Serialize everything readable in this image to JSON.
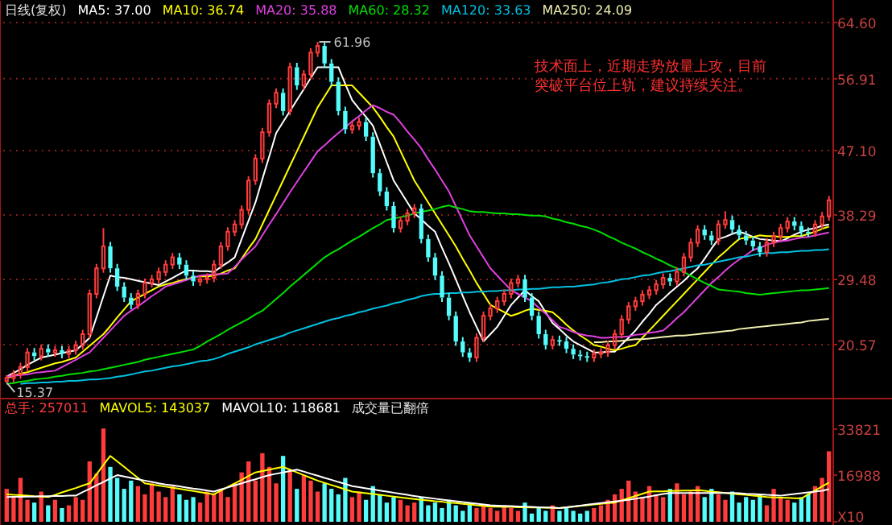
{
  "chart_data": [
    {
      "type": "candlestick",
      "title": "日线(复权)",
      "legend": "top left",
      "grid": "y",
      "categories": [
        null,
        null,
        null,
        null,
        null,
        null,
        null,
        null,
        null,
        null,
        null,
        null,
        null,
        null,
        null,
        null,
        null,
        null,
        null,
        null,
        null,
        null,
        null,
        null,
        null,
        null,
        null,
        null,
        null,
        null,
        null,
        null,
        null,
        null,
        null,
        null,
        null,
        null,
        null,
        null,
        null,
        null,
        null,
        null,
        null,
        null,
        null,
        null,
        null,
        null,
        null,
        null,
        null,
        null,
        null,
        null,
        null,
        null,
        null,
        null,
        null,
        null,
        null,
        null,
        null,
        null,
        null,
        null,
        null,
        null,
        null,
        null,
        null,
        null,
        null,
        null,
        null,
        null,
        null,
        null,
        null,
        null,
        null,
        null,
        null,
        null,
        null,
        null,
        null,
        null,
        null,
        null,
        null,
        null,
        null,
        null,
        null,
        null,
        null,
        null,
        null,
        null,
        null,
        null,
        null,
        null,
        null,
        null,
        null,
        null,
        null,
        null,
        null,
        null,
        null,
        null,
        null,
        null,
        null,
        null
      ],
      "ohlc": [
        [
          15.6,
          16.4,
          15.37,
          16.0
        ],
        [
          16.0,
          17.1,
          15.4,
          16.5
        ],
        [
          16.5,
          18.1,
          15.9,
          17.5
        ],
        [
          17.5,
          20.1,
          16.9,
          19.5
        ],
        [
          19.5,
          20.1,
          18.4,
          19.0
        ],
        [
          19.0,
          20.6,
          18.4,
          20.0
        ],
        [
          20.0,
          20.6,
          18.9,
          19.5
        ],
        [
          19.5,
          20.4,
          18.9,
          19.8
        ],
        [
          19.8,
          20.4,
          18.7,
          19.3
        ],
        [
          19.3,
          20.4,
          18.7,
          19.8
        ],
        [
          19.8,
          21.1,
          19.2,
          20.5
        ],
        [
          20.5,
          22.6,
          19.9,
          22.0
        ],
        [
          22.0,
          28.1,
          21.4,
          27.5
        ],
        [
          27.5,
          31.6,
          26.9,
          31.0
        ],
        [
          31.0,
          36.5,
          30.4,
          34.0
        ],
        [
          34.0,
          34.6,
          30.4,
          31.0
        ],
        [
          31.0,
          31.6,
          27.9,
          28.5
        ],
        [
          28.5,
          29.1,
          26.4,
          27.0
        ],
        [
          27.0,
          27.6,
          25.4,
          26.0
        ],
        [
          26.0,
          28.1,
          25.4,
          27.5
        ],
        [
          27.5,
          29.6,
          26.9,
          29.0
        ],
        [
          29.0,
          30.1,
          28.4,
          29.5
        ],
        [
          29.5,
          31.1,
          28.9,
          30.5
        ],
        [
          30.5,
          32.1,
          29.9,
          31.5
        ],
        [
          31.5,
          33.1,
          30.9,
          32.5
        ],
        [
          32.5,
          33.1,
          30.9,
          31.5
        ],
        [
          31.5,
          32.1,
          29.4,
          30.0
        ],
        [
          30.0,
          30.6,
          28.6,
          29.2
        ],
        [
          29.2,
          30.1,
          28.6,
          29.5
        ],
        [
          29.5,
          30.3,
          28.9,
          29.7
        ],
        [
          29.7,
          32.1,
          29.1,
          31.5
        ],
        [
          31.5,
          34.6,
          30.9,
          34.0
        ],
        [
          34.0,
          36.6,
          33.4,
          36.0
        ],
        [
          36.0,
          37.6,
          35.4,
          37.0
        ],
        [
          37.0,
          39.6,
          36.4,
          39.0
        ],
        [
          39.0,
          43.6,
          38.4,
          43.0
        ],
        [
          43.0,
          46.6,
          42.4,
          46.0
        ],
        [
          46.0,
          50.2,
          45.4,
          49.6
        ],
        [
          49.6,
          54.1,
          49.0,
          53.5
        ],
        [
          53.5,
          55.6,
          52.9,
          55.0
        ],
        [
          55.0,
          55.6,
          51.9,
          52.5
        ],
        [
          52.5,
          59.1,
          51.9,
          58.5
        ],
        [
          58.5,
          59.1,
          55.4,
          56.0
        ],
        [
          56.0,
          58.1,
          55.4,
          57.5
        ],
        [
          57.5,
          61.1,
          56.9,
          60.5
        ],
        [
          60.5,
          61.96,
          59.9,
          61.4
        ],
        [
          61.4,
          61.9,
          58.4,
          59.0
        ],
        [
          59.0,
          59.6,
          55.9,
          56.5
        ],
        [
          56.5,
          57.1,
          51.9,
          52.5
        ],
        [
          52.5,
          53.1,
          49.4,
          50.0
        ],
        [
          50.0,
          51.1,
          49.4,
          50.5
        ],
        [
          50.5,
          51.6,
          49.9,
          51.0
        ],
        [
          51.0,
          51.6,
          48.4,
          49.0
        ],
        [
          49.0,
          49.6,
          43.4,
          44.0
        ],
        [
          44.0,
          44.6,
          40.9,
          41.5
        ],
        [
          41.5,
          42.1,
          38.9,
          39.5
        ],
        [
          39.5,
          40.1,
          35.9,
          36.5
        ],
        [
          36.5,
          38.1,
          35.9,
          37.5
        ],
        [
          37.5,
          39.1,
          36.9,
          38.5
        ],
        [
          38.5,
          39.8,
          37.9,
          39.2
        ],
        [
          39.2,
          39.8,
          34.4,
          35.0
        ],
        [
          35.0,
          35.6,
          31.9,
          32.5
        ],
        [
          32.5,
          33.1,
          29.4,
          30.0
        ],
        [
          30.0,
          30.6,
          26.4,
          27.0
        ],
        [
          27.0,
          27.6,
          23.9,
          24.5
        ],
        [
          24.5,
          25.1,
          20.4,
          21.0
        ],
        [
          21.0,
          21.6,
          18.9,
          19.5
        ],
        [
          19.5,
          20.1,
          18.2,
          18.8
        ],
        [
          18.8,
          22.1,
          18.2,
          21.5
        ],
        [
          21.5,
          25.1,
          20.9,
          24.5
        ],
        [
          24.5,
          26.1,
          23.9,
          25.5
        ],
        [
          25.5,
          27.1,
          24.9,
          26.5
        ],
        [
          26.5,
          28.1,
          25.9,
          27.5
        ],
        [
          27.5,
          29.6,
          26.9,
          29.0
        ],
        [
          29.0,
          30.1,
          28.4,
          29.5
        ],
        [
          29.5,
          30.1,
          26.4,
          27.0
        ],
        [
          27.0,
          27.6,
          23.9,
          24.5
        ],
        [
          24.5,
          25.1,
          21.4,
          22.0
        ],
        [
          22.0,
          22.6,
          19.9,
          20.5
        ],
        [
          20.5,
          21.8,
          19.9,
          21.2
        ],
        [
          21.2,
          21.8,
          20.4,
          21.0
        ],
        [
          21.0,
          21.6,
          19.4,
          20.0
        ],
        [
          20.0,
          20.6,
          18.6,
          19.2
        ],
        [
          19.2,
          19.8,
          18.4,
          19.0
        ],
        [
          19.0,
          19.6,
          18.2,
          18.8
        ],
        [
          18.8,
          19.9,
          18.2,
          19.3
        ],
        [
          19.3,
          20.1,
          18.7,
          19.5
        ],
        [
          19.5,
          21.1,
          18.9,
          20.5
        ],
        [
          20.5,
          22.6,
          19.9,
          22.0
        ],
        [
          22.0,
          24.6,
          21.4,
          24.0
        ],
        [
          24.0,
          26.4,
          23.4,
          25.8
        ],
        [
          25.8,
          27.1,
          25.2,
          26.5
        ],
        [
          26.5,
          28.0,
          25.9,
          27.4
        ],
        [
          27.4,
          28.6,
          26.8,
          28.0
        ],
        [
          28.0,
          29.4,
          27.4,
          28.8
        ],
        [
          28.8,
          30.3,
          28.2,
          29.7
        ],
        [
          29.7,
          30.3,
          28.6,
          29.2
        ],
        [
          29.2,
          31.1,
          28.6,
          30.5
        ],
        [
          30.5,
          33.1,
          29.9,
          32.5
        ],
        [
          32.5,
          35.1,
          31.9,
          34.5
        ],
        [
          34.5,
          36.9,
          33.9,
          36.3
        ],
        [
          36.3,
          36.9,
          34.9,
          35.5
        ],
        [
          35.5,
          36.1,
          34.2,
          34.8
        ],
        [
          34.8,
          37.6,
          34.2,
          37.0
        ],
        [
          37.0,
          38.8,
          36.4,
          37.6
        ],
        [
          37.6,
          38.2,
          35.7,
          36.3
        ],
        [
          36.3,
          36.9,
          34.9,
          35.5
        ],
        [
          35.5,
          36.1,
          34.2,
          34.8
        ],
        [
          34.8,
          35.4,
          33.4,
          34.0
        ],
        [
          34.0,
          34.6,
          32.6,
          33.2
        ],
        [
          33.2,
          35.1,
          32.6,
          34.5
        ],
        [
          34.5,
          36.0,
          33.9,
          35.4
        ],
        [
          35.4,
          37.1,
          34.8,
          36.5
        ],
        [
          36.5,
          38.0,
          35.9,
          37.4
        ],
        [
          37.4,
          38.0,
          36.2,
          36.8
        ],
        [
          36.8,
          37.4,
          35.4,
          36.0
        ],
        [
          36.0,
          36.6,
          35.3,
          35.9
        ],
        [
          35.9,
          37.6,
          35.3,
          37.0
        ],
        [
          37.0,
          38.7,
          36.4,
          38.1
        ],
        [
          38.1,
          40.9,
          37.5,
          40.3
        ]
      ],
      "ylim": [
        13.3,
        64.6
      ],
      "yticks": [
        20.57,
        29.48,
        38.29,
        {
          "value": 47.1,
          "label": "47.10"
        },
        56.91,
        {
          "value": 64.6,
          "label": "64.60"
        }
      ],
      "annotations": [
        "61.96",
        "15.37",
        "技术面上，近期走势放量上攻，目前突破平台位上轨，建议持续关注。"
      ],
      "series": [
        {
          "name": "MA5: 37.00",
          "type": "line",
          "color": "#ffffff",
          "values": [
            16.2,
            16.7,
            17.2,
            17.8,
            18.3,
            18.8,
            19.0,
            19.2,
            19.4,
            19.6,
            19.8,
            20.6,
            21.5,
            24.3,
            27.2,
            30.0,
            29.8,
            29.7,
            29.5,
            29.3,
            29.1,
            28.9,
            28.7,
            29.2,
            29.7,
            30.2,
            30.7,
            30.7,
            30.6,
            30.6,
            30.5,
            31.2,
            31.8,
            32.5,
            35.0,
            37.5,
            40,
            43.2,
            46.3,
            49.5,
            51.0,
            52.5,
            54,
            55.5,
            57.0,
            58.5,
            58.5,
            58.5,
            58.5,
            56.2,
            54,
            52.8,
            51.7,
            50.5,
            48.0,
            45.5,
            43,
            41.5,
            40.0,
            38.5,
            37.7,
            36.8,
            36,
            33.8,
            31.7,
            29.5,
            27.2,
            25,
            23.0,
            21,
            22.0,
            23,
            24.5,
            26,
            27.0,
            28,
            27.2,
            26.5,
            25.0,
            23.5,
            22.7,
            21.8,
            21,
            20.5,
            20.0,
            19.5,
            19.5,
            19.6,
            19.6,
            20.6,
            21.5,
            22.5,
            23.7,
            24.8,
            26,
            26.8,
            27.7,
            28.5,
            29.3,
            30.2,
            31,
            32.3,
            33.7,
            35,
            35.3,
            35.7,
            36,
            35.7,
            35.3,
            35,
            34.9,
            34.8,
            34.7,
            35.1,
            35.6,
            36,
            36.3,
            36.5,
            36.8,
            37.0
          ]
        },
        {
          "name": "MA10: 36.74",
          "type": "line",
          "color": "#ffff00",
          "values": [
            16.0,
            16.3,
            16.6,
            16.8,
            17.1,
            17.4,
            17.7,
            18.0,
            18.2,
            18.5,
            18.8,
            19.6,
            20.4,
            21.2,
            22.0,
            23.1,
            24.3,
            25.4,
            26.5,
            27.0,
            27.5,
            28.0,
            28.5,
            28.8,
            29.0,
            29.3,
            29.5,
            29.8,
            29.9,
            29.9,
            30.0,
            30.3,
            30.7,
            31.0,
            32.3,
            33.7,
            35.0,
            37.0,
            39.0,
            41.0,
            43.0,
            45.0,
            47.0,
            49.0,
            51.0,
            53.0,
            54.5,
            56.0,
            56.0,
            56.0,
            56.0,
            55.0,
            54.0,
            53.0,
            51.7,
            50.3,
            49.0,
            47.0,
            45.0,
            43.0,
            41.5,
            40.0,
            38.5,
            37.0,
            35.5,
            34.0,
            32.3,
            30.7,
            29.0,
            27.5,
            26.0,
            25.5,
            25.0,
            24.5,
            24.8,
            25.2,
            25.5,
            25.3,
            25.2,
            25.0,
            24.2,
            23.3,
            22.5,
            21.8,
            21.2,
            20.5,
            20.3,
            20.0,
            19.8,
            20.0,
            20.3,
            20.5,
            21.5,
            22.5,
            23.5,
            24.5,
            25.5,
            26.5,
            27.5,
            28.5,
            29.5,
            30.5,
            31.5,
            32.5,
            33.3,
            34.2,
            35.0,
            35.2,
            35.3,
            35.5,
            35.4,
            35.4,
            35.3,
            35.3,
            35.4,
            35.4,
            35.7,
            36.0,
            36.4,
            36.7
          ]
        },
        {
          "name": "MA20: 35.88",
          "type": "line",
          "color": "#e040e0",
          "values": [
            16.2,
            16.3,
            16.4,
            16.5,
            16.7,
            16.8,
            16.9,
            17.0,
            17.5,
            18.0,
            18.5,
            19.0,
            19.5,
            20.5,
            21.5,
            22.5,
            23.5,
            24.5,
            25.2,
            25.8,
            26.5,
            27.2,
            27.8,
            28.5,
            28.8,
            29.1,
            29.4,
            29.7,
            30.0,
            30.1,
            30.2,
            30.2,
            30.3,
            31.2,
            32.2,
            33.1,
            34.0,
            35.5,
            37.0,
            38.4,
            39.9,
            41.4,
            42.8,
            44.2,
            45.6,
            47.0,
            47.8,
            48.7,
            49.5,
            50.3,
            51.1,
            51.8,
            52.6,
            53.3,
            52.9,
            52.4,
            52.0,
            50.9,
            49.7,
            48.6,
            47.4,
            45.9,
            44.5,
            43.0,
            41.5,
            39.5,
            37.5,
            35.5,
            34.0,
            32.5,
            31.0,
            30.0,
            29.0,
            28.0,
            27.5,
            27.0,
            26.5,
            25.6,
            24.8,
            23.9,
            23.0,
            22.7,
            22.3,
            22.0,
            21.8,
            21.7,
            21.5,
            21.5,
            21.6,
            21.6,
            21.7,
            21.9,
            22.0,
            22.2,
            22.3,
            22.5,
            23.3,
            24.2,
            25.0,
            26.0,
            27.0,
            28.0,
            29.0,
            29.8,
            30.7,
            31.5,
            32.2,
            32.8,
            33.5,
            33.8,
            34.2,
            34.5,
            34.7,
            34.8,
            35.0,
            35.2,
            35.3,
            35.5,
            35.7,
            35.9
          ]
        },
        {
          "name": "MA60: 28.32",
          "type": "line",
          "color": "#00e000",
          "values": [
            15.2,
            15.3,
            15.5,
            15.6,
            15.8,
            15.9,
            16.0,
            16.2,
            16.3,
            16.5,
            16.6,
            16.7,
            16.9,
            17.0,
            17.2,
            17.4,
            17.6,
            17.8,
            18.0,
            18.2,
            18.5,
            18.7,
            18.9,
            19.1,
            19.3,
            19.5,
            19.7,
            19.9,
            20.4,
            21.0,
            21.5,
            22.0,
            22.6,
            23.1,
            23.6,
            24.1,
            24.7,
            25.2,
            26.0,
            26.8,
            27.6,
            28.5,
            29.3,
            30.1,
            30.9,
            31.7,
            32.5,
            33.1,
            33.6,
            34.2,
            34.8,
            35.3,
            35.9,
            36.5,
            37.0,
            37.6,
            37.8,
            38.0,
            38.2,
            38.5,
            38.7,
            38.9,
            39.1,
            39.4,
            39.6,
            39.3,
            39.1,
            38.8,
            38.7,
            38.7,
            38.6,
            38.5,
            38.5,
            38.4,
            38.4,
            38.3,
            38.2,
            38.2,
            38.1,
            37.8,
            37.6,
            37.3,
            37.1,
            36.8,
            36.6,
            36.3,
            35.9,
            35.4,
            35.0,
            34.5,
            34.1,
            33.7,
            33.2,
            32.8,
            32.3,
            31.9,
            31.4,
            31.0,
            30.5,
            30.0,
            29.5,
            29.0,
            28.6,
            28.1,
            28.0,
            27.9,
            27.8,
            27.6,
            27.5,
            27.4,
            27.5,
            27.6,
            27.7,
            27.8,
            27.9,
            28.0,
            28.0,
            28.1,
            28.2,
            28.3
          ]
        },
        {
          "name": "MA120: 33.63",
          "type": "line",
          "color": "#00c0e0",
          "values": [
            null,
            null,
            15.2,
            15.3,
            15.3,
            15.4,
            15.4,
            15.5,
            15.5,
            15.6,
            15.6,
            15.7,
            15.8,
            15.8,
            15.9,
            16.0,
            16.2,
            16.3,
            16.5,
            16.7,
            16.9,
            17.0,
            17.2,
            17.4,
            17.6,
            17.7,
            17.9,
            18.1,
            18.3,
            18.4,
            18.6,
            18.9,
            19.3,
            19.6,
            19.9,
            20.2,
            20.6,
            20.9,
            21.2,
            21.5,
            21.8,
            22.2,
            22.5,
            22.8,
            23.1,
            23.4,
            23.7,
            24.0,
            24.2,
            24.5,
            24.7,
            25.0,
            25.2,
            25.5,
            25.7,
            25.9,
            26.2,
            26.4,
            26.7,
            26.9,
            27.2,
            27.4,
            27.5,
            27.5,
            27.6,
            27.6,
            27.7,
            27.7,
            27.8,
            27.8,
            27.9,
            27.9,
            28.0,
            28.0,
            28.1,
            28.1,
            28.2,
            28.2,
            28.3,
            28.4,
            28.4,
            28.5,
            28.5,
            28.6,
            28.7,
            28.8,
            29.0,
            29.1,
            29.3,
            29.5,
            29.6,
            29.8,
            30.0,
            30.1,
            30.3,
            30.5,
            30.6,
            30.8,
            31.0,
            31.2,
            31.4,
            31.5,
            31.7,
            31.9,
            32.1,
            32.3,
            32.5,
            32.6,
            32.8,
            33.0,
            33.1,
            33.1,
            33.2,
            33.2,
            33.3,
            33.4,
            33.4,
            33.5,
            33.5,
            33.6
          ]
        },
        {
          "name": "MA250: 24.09",
          "type": "line",
          "color": "#f0f0b0",
          "values": [
            null,
            null,
            null,
            null,
            null,
            null,
            null,
            null,
            null,
            null,
            null,
            null,
            null,
            null,
            null,
            null,
            null,
            null,
            null,
            null,
            null,
            null,
            null,
            null,
            null,
            null,
            null,
            null,
            null,
            null,
            null,
            null,
            null,
            null,
            null,
            null,
            null,
            null,
            null,
            null,
            null,
            null,
            null,
            null,
            null,
            null,
            null,
            null,
            null,
            null,
            null,
            null,
            null,
            null,
            null,
            null,
            null,
            null,
            null,
            null,
            null,
            null,
            null,
            null,
            null,
            null,
            null,
            null,
            null,
            null,
            null,
            null,
            null,
            null,
            null,
            null,
            null,
            null,
            null,
            null,
            null,
            null,
            null,
            null,
            null,
            20.9,
            20.9,
            21.0,
            21.0,
            21.1,
            21.2,
            21.3,
            21.3,
            21.4,
            21.5,
            21.6,
            21.7,
            21.8,
            21.8,
            21.9,
            22.0,
            22.1,
            22.2,
            22.3,
            22.4,
            22.5,
            22.7,
            22.8,
            22.9,
            23.0,
            23.1,
            23.2,
            23.3,
            23.4,
            23.5,
            23.6,
            23.8,
            23.9,
            24.0,
            24.1
          ]
        }
      ]
    },
    {
      "type": "bar",
      "legend": "top left",
      "categories": [
        null,
        null,
        null,
        null,
        null,
        null,
        null,
        null,
        null,
        null,
        null,
        null,
        null,
        null,
        null,
        null,
        null,
        null,
        null,
        null,
        null,
        null,
        null,
        null,
        null,
        null,
        null,
        null,
        null,
        null,
        null,
        null,
        null,
        null,
        null,
        null,
        null,
        null,
        null,
        null,
        null,
        null,
        null,
        null,
        null,
        null,
        null,
        null,
        null,
        null,
        null,
        null,
        null,
        null,
        null,
        null,
        null,
        null,
        null,
        null,
        null,
        null,
        null,
        null,
        null,
        null,
        null,
        null,
        null,
        null,
        null,
        null,
        null,
        null,
        null,
        null,
        null,
        null,
        null,
        null,
        null,
        null,
        null,
        null,
        null,
        null,
        null,
        null,
        null,
        null,
        null,
        null,
        null,
        null,
        null,
        null,
        null,
        null,
        null,
        null,
        null,
        null,
        null,
        null,
        null,
        null,
        null,
        null,
        null,
        null,
        null,
        null,
        null,
        null,
        null,
        null,
        null,
        null,
        null,
        null
      ],
      "ylim": [
        0,
        44600
      ],
      "yticks": [
        {
          "value": 0,
          "label": "X10"
        },
        16988,
        33821
      ],
      "annotations": [
        "成交量已翻倍"
      ],
      "series": [
        {
          "name": "总手: 257011",
          "type": "bar",
          "color": "#ff3c3c",
          "values": [
            12000,
            9000,
            16000,
            8000,
            7000,
            11000,
            6000,
            8000,
            5000,
            6000,
            9000,
            8000,
            22000,
            17600,
            34000,
            20000,
            16000,
            12000,
            15000,
            13000,
            10000,
            14000,
            11000,
            9000,
            13000,
            10000,
            8000,
            9000,
            7000,
            11000,
            10000,
            12000,
            9000,
            14000,
            18000,
            22000,
            15000,
            25000,
            20000,
            14000,
            24000,
            19000,
            12000,
            17000,
            15000,
            11000,
            14000,
            12000,
            10000,
            16000,
            9000,
            11000,
            8000,
            13000,
            10000,
            7000,
            9000,
            8000,
            6000,
            7000,
            9000,
            6000,
            7000,
            5000,
            8000,
            6000,
            4000,
            7000,
            5000,
            6000,
            5000,
            4000,
            6000,
            5000,
            4000,
            7000,
            3000,
            5000,
            4000,
            6000,
            4000,
            5000,
            4000,
            3000,
            4000,
            5000,
            6000,
            8000,
            10000,
            12000,
            15000,
            11000,
            9000,
            13000,
            10000,
            9000,
            12000,
            14000,
            10000,
            11000,
            13000,
            9000,
            12000,
            10000,
            8000,
            11000,
            7000,
            9000,
            8000,
            10000,
            6000,
            12000,
            9000,
            8000,
            7000,
            9000,
            10000,
            13000,
            16000,
            25700
          ],
          "colors": [
            "#ff3c3c",
            "#ff3c3c",
            "#ff3c3c",
            "#ff3c3c",
            "#54fcfc",
            "#ff3c3c",
            "#54fcfc",
            "#ff3c3c",
            "#54fcfc",
            "#ff3c3c",
            "#ff3c3c",
            "#ff3c3c",
            "#ff3c3c",
            "#ff3c3c",
            "#ff3c3c",
            "#54fcfc",
            "#54fcfc",
            "#54fcfc",
            "#54fcfc",
            "#ff3c3c",
            "#ff3c3c",
            "#ff3c3c",
            "#ff3c3c",
            "#ff3c3c",
            "#ff3c3c",
            "#54fcfc",
            "#54fcfc",
            "#54fcfc",
            "#ff3c3c",
            "#ff3c3c",
            "#ff3c3c",
            "#ff3c3c",
            "#ff3c3c",
            "#ff3c3c",
            "#ff3c3c",
            "#ff3c3c",
            "#ff3c3c",
            "#ff3c3c",
            "#ff3c3c",
            "#ff3c3c",
            "#54fcfc",
            "#ff3c3c",
            "#54fcfc",
            "#ff3c3c",
            "#ff3c3c",
            "#ff3c3c",
            "#54fcfc",
            "#54fcfc",
            "#54fcfc",
            "#54fcfc",
            "#ff3c3c",
            "#ff3c3c",
            "#54fcfc",
            "#54fcfc",
            "#54fcfc",
            "#54fcfc",
            "#54fcfc",
            "#ff3c3c",
            "#ff3c3c",
            "#ff3c3c",
            "#54fcfc",
            "#54fcfc",
            "#54fcfc",
            "#54fcfc",
            "#54fcfc",
            "#54fcfc",
            "#54fcfc",
            "#54fcfc",
            "#ff3c3c",
            "#ff3c3c",
            "#ff3c3c",
            "#ff3c3c",
            "#ff3c3c",
            "#ff3c3c",
            "#ff3c3c",
            "#54fcfc",
            "#54fcfc",
            "#54fcfc",
            "#54fcfc",
            "#ff3c3c",
            "#54fcfc",
            "#54fcfc",
            "#54fcfc",
            "#54fcfc",
            "#54fcfc",
            "#ff3c3c",
            "#ff3c3c",
            "#ff3c3c",
            "#ff3c3c",
            "#ff3c3c",
            "#ff3c3c",
            "#ff3c3c",
            "#ff3c3c",
            "#ff3c3c",
            "#ff3c3c",
            "#ff3c3c",
            "#54fcfc",
            "#ff3c3c",
            "#ff3c3c",
            "#ff3c3c",
            "#ff3c3c",
            "#54fcfc",
            "#54fcfc",
            "#ff3c3c",
            "#ff3c3c",
            "#54fcfc",
            "#54fcfc",
            "#54fcfc",
            "#54fcfc",
            "#54fcfc",
            "#ff3c3c",
            "#ff3c3c",
            "#ff3c3c",
            "#ff3c3c",
            "#54fcfc",
            "#54fcfc",
            "#54fcfc",
            "#ff3c3c",
            "#ff3c3c",
            "#ff3c3c"
          ]
        },
        {
          "name": "MAVOL5: 143037",
          "type": "line",
          "color": "#ffff00",
          "values": [
            10000,
            9800,
            9700,
            9500,
            9300,
            9200,
            9000,
            9800,
            10700,
            11500,
            12300,
            13200,
            14000,
            17300,
            20700,
            24000,
            22000,
            20000,
            18000,
            16000,
            14000,
            13600,
            13200,
            12800,
            12400,
            12000,
            11600,
            11200,
            10800,
            10400,
            10000,
            11300,
            12700,
            14000,
            15300,
            16700,
            18000,
            18500,
            19000,
            19500,
            20000,
            19000,
            18000,
            17000,
            16000,
            15000,
            14200,
            13400,
            12600,
            11800,
            11000,
            10700,
            10400,
            10100,
            9800,
            9500,
            9200,
            8900,
            8600,
            8300,
            8000,
            7800,
            7500,
            7300,
            7000,
            6800,
            6500,
            6300,
            6000,
            5800,
            5500,
            5500,
            5400,
            5400,
            5300,
            5300,
            5200,
            5200,
            5100,
            5100,
            5000,
            5300,
            5500,
            5800,
            6000,
            6300,
            6500,
            6800,
            7000,
            7800,
            8600,
            9400,
            10200,
            11000,
            11100,
            11100,
            11200,
            11300,
            11400,
            11400,
            11500,
            11300,
            11000,
            10800,
            10500,
            10300,
            10000,
            9800,
            9500,
            9300,
            9000,
            8900,
            8800,
            8700,
            8600,
            8500,
            10000,
            11400,
            12900,
            14300
          ]
        },
        {
          "name": "MAVOL10: 118681",
          "type": "line",
          "color": "#ffffff",
          "values": [
            9000,
            9100,
            9100,
            9200,
            9200,
            9300,
            9300,
            9400,
            9400,
            9500,
            9500,
            10800,
            12000,
            13300,
            14500,
            15800,
            17000,
            16500,
            16000,
            15500,
            15000,
            14500,
            14000,
            13600,
            13300,
            12900,
            12500,
            12100,
            11800,
            11400,
            11000,
            11800,
            12500,
            13300,
            14000,
            14800,
            15500,
            16300,
            17000,
            17500,
            18000,
            18500,
            19000,
            18300,
            17500,
            16800,
            16000,
            15300,
            14500,
            13800,
            13000,
            12600,
            12200,
            11800,
            11400,
            11000,
            10600,
            10200,
            9800,
            9400,
            9000,
            8700,
            8400,
            8100,
            7800,
            7500,
            7200,
            6900,
            6600,
            6300,
            6000,
            5900,
            5800,
            5700,
            5600,
            5500,
            5400,
            5300,
            5200,
            5100,
            5000,
            5300,
            5600,
            5900,
            6200,
            6500,
            6800,
            7100,
            7400,
            7700,
            8000,
            8400,
            8800,
            9200,
            9700,
            10100,
            10500,
            10500,
            10500,
            10500,
            10500,
            10500,
            10500,
            10500,
            10500,
            10500,
            10400,
            10200,
            10100,
            10000,
            9800,
            9700,
            9500,
            9800,
            10100,
            10400,
            10700,
            11000,
            11300,
            11900
          ]
        }
      ]
    }
  ]
}
